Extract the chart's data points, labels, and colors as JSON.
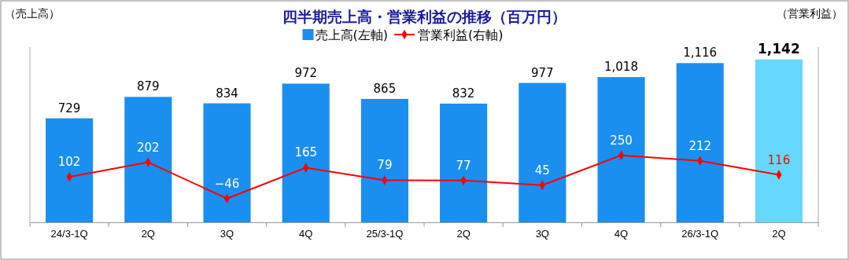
{
  "chart_data": {
    "type": "bar",
    "title": "四半期売上高・営業利益の推移（百万円）",
    "ylabel": "（売上高）",
    "y2label": "（営業利益）",
    "categories": [
      "24/3-1Q",
      "2Q",
      "3Q",
      "4Q",
      "25/3-1Q",
      "2Q",
      "3Q",
      "4Q",
      "26/3-1Q",
      "2Q"
    ],
    "series": [
      {
        "name": "売上高(左軸)",
        "color": "#1a8ff0",
        "colors": [
          "#1a8ff0",
          "#1a8ff0",
          "#1a8ff0",
          "#1a8ff0",
          "#1a8ff0",
          "#1a8ff0",
          "#1a8ff0",
          "#1a8ff0",
          "#1a8ff0",
          "#66d8ff"
        ],
        "values": [
          729,
          879,
          834,
          972,
          865,
          832,
          977,
          1018,
          1116,
          1142
        ],
        "value_labels": [
          "729",
          "879",
          "834",
          "972",
          "865",
          "832",
          "977",
          "1,018",
          "1,116",
          "1,142"
        ]
      },
      {
        "name": "営業利益(右軸)",
        "type": "line",
        "axis": "y2",
        "color": "#ff0000",
        "marker": "diamond",
        "values": [
          102,
          202,
          -46,
          165,
          79,
          77,
          45,
          250,
          212,
          116
        ]
      }
    ],
    "data_labels": true,
    "legend": "top",
    "grid": false
  }
}
